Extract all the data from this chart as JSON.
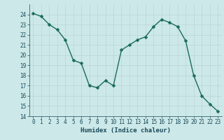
{
  "x": [
    0,
    1,
    2,
    3,
    4,
    5,
    6,
    7,
    8,
    9,
    10,
    11,
    12,
    13,
    14,
    15,
    16,
    17,
    18,
    19,
    20,
    21,
    22,
    23
  ],
  "y": [
    24.1,
    23.8,
    23.0,
    22.5,
    21.5,
    19.5,
    19.2,
    17.0,
    16.8,
    17.5,
    17.0,
    20.5,
    21.0,
    21.5,
    21.8,
    22.8,
    23.5,
    23.2,
    22.8,
    21.4,
    18.0,
    16.0,
    15.2,
    14.5
  ],
  "xlabel": "Humidex (Indice chaleur)",
  "ylim": [
    14,
    25
  ],
  "xlim": [
    -0.5,
    23.5
  ],
  "yticks": [
    14,
    15,
    16,
    17,
    18,
    19,
    20,
    21,
    22,
    23,
    24
  ],
  "xticks": [
    0,
    1,
    2,
    3,
    4,
    5,
    6,
    7,
    8,
    9,
    10,
    11,
    12,
    13,
    14,
    15,
    16,
    17,
    18,
    19,
    20,
    21,
    22,
    23
  ],
  "line_color": "#1a6b5a",
  "marker_color": "#1a6b5a",
  "bg_color": "#cce8e8",
  "grid_color": "#b8d4d4",
  "tick_label_color": "#1a4a5a",
  "xlabel_color": "#1a4a5a",
  "xlabel_fontsize": 6.5,
  "tick_fontsize": 5.5,
  "line_width": 1.0,
  "marker_size": 2.5
}
